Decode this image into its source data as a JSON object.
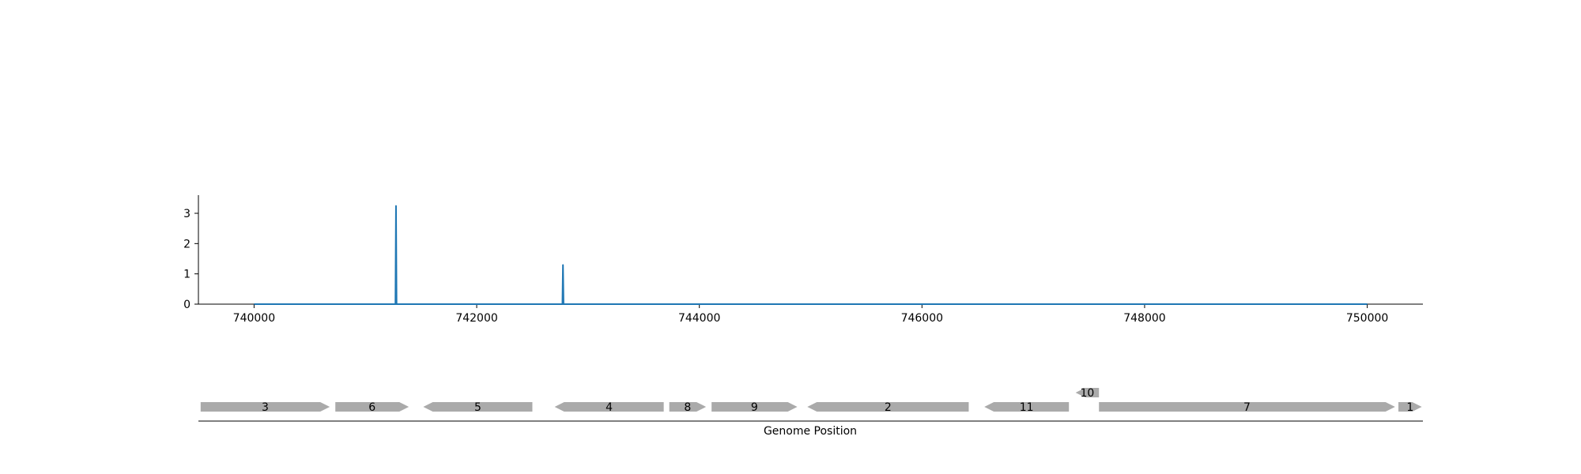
{
  "chart_data": [
    {
      "type": "line",
      "title": "",
      "xlabel": "",
      "ylabel": "",
      "xlim": [
        739500,
        750500
      ],
      "ylim": [
        0,
        3.6
      ],
      "grid": false,
      "x_ticks": [
        740000,
        742000,
        744000,
        746000,
        748000,
        750000
      ],
      "y_ticks": [
        0,
        1,
        2,
        3
      ],
      "series_color": "#1f77b4",
      "series": [
        {
          "x": [
            740000,
            741270,
            741275,
            741280,
            742770,
            742775,
            742780,
            750000
          ],
          "values": [
            0,
            0,
            3.25,
            0,
            0,
            1.3,
            0,
            0
          ]
        }
      ]
    },
    {
      "type": "gene-track",
      "xlabel": "Genome Position",
      "feature_color": "#aaaaaa",
      "features": [
        {
          "label": "3",
          "start": 739520,
          "end": 740680,
          "strand": "+",
          "row": 0
        },
        {
          "label": "6",
          "start": 740730,
          "end": 741390,
          "strand": "+",
          "row": 0
        },
        {
          "label": "5",
          "start": 741520,
          "end": 742500,
          "strand": "-",
          "row": 0
        },
        {
          "label": "4",
          "start": 742700,
          "end": 743680,
          "strand": "-",
          "row": 0
        },
        {
          "label": "8",
          "start": 743730,
          "end": 744060,
          "strand": "+",
          "row": 0
        },
        {
          "label": "9",
          "start": 744110,
          "end": 744880,
          "strand": "+",
          "row": 0
        },
        {
          "label": "2",
          "start": 744970,
          "end": 746420,
          "strand": "-",
          "row": 0
        },
        {
          "label": "11",
          "start": 746560,
          "end": 747320,
          "strand": "-",
          "row": 0
        },
        {
          "label": "10",
          "start": 747380,
          "end": 747590,
          "strand": "-",
          "row": 1
        },
        {
          "label": "7",
          "start": 747590,
          "end": 750250,
          "strand": "+",
          "row": 0
        },
        {
          "label": "1",
          "start": 750280,
          "end": 750490,
          "strand": "+",
          "row": 0
        }
      ]
    }
  ]
}
